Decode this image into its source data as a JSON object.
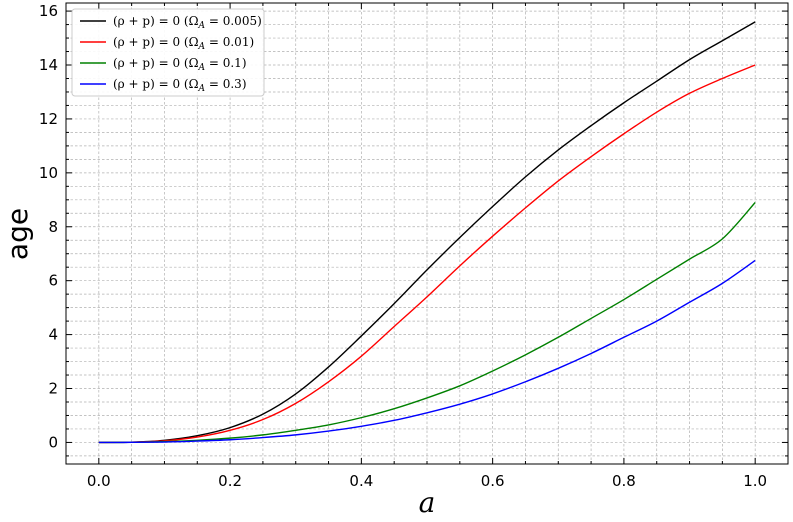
{
  "chart_data": {
    "type": "line",
    "xlabel": "a",
    "ylabel": "age",
    "xlim": [
      -0.05,
      1.05
    ],
    "ylim": [
      -0.8,
      16.3
    ],
    "xticks": [
      0.0,
      0.2,
      0.4,
      0.6,
      0.8,
      1.0
    ],
    "xtick_labels": [
      "0.0",
      "0.2",
      "0.4",
      "0.6",
      "0.8",
      "1.0"
    ],
    "yticks": [
      0,
      2,
      4,
      6,
      8,
      10,
      12,
      14,
      16
    ],
    "ytick_labels": [
      "0",
      "2",
      "4",
      "6",
      "8",
      "10",
      "12",
      "14",
      "16"
    ],
    "grid": true,
    "legend_position": "top-left",
    "x": [
      0.0,
      0.05,
      0.1,
      0.15,
      0.2,
      0.25,
      0.3,
      0.35,
      0.4,
      0.45,
      0.5,
      0.55,
      0.6,
      0.65,
      0.7,
      0.75,
      0.8,
      0.85,
      0.9,
      0.95,
      1.0
    ],
    "series": [
      {
        "name": "(ρ + p) = 0 (Ω_A = 0.005)",
        "color": "#000000",
        "values": [
          0.0,
          0.01,
          0.08,
          0.25,
          0.55,
          1.05,
          1.8,
          2.8,
          3.95,
          5.15,
          6.4,
          7.6,
          8.75,
          9.85,
          10.85,
          11.75,
          12.6,
          13.4,
          14.2,
          14.9,
          15.6
        ]
      },
      {
        "name": "(ρ + p) = 0 (Ω_A = 0.01)",
        "color": "#ff0000",
        "values": [
          0.0,
          0.01,
          0.06,
          0.2,
          0.45,
          0.85,
          1.45,
          2.25,
          3.2,
          4.3,
          5.4,
          6.55,
          7.65,
          8.7,
          9.7,
          10.6,
          11.45,
          12.25,
          12.95,
          13.5,
          14.0
        ]
      },
      {
        "name": "(ρ + p) = 0 (Ω_A = 0.1)",
        "color": "#008000",
        "values": [
          0.0,
          0.005,
          0.03,
          0.08,
          0.16,
          0.28,
          0.45,
          0.65,
          0.92,
          1.25,
          1.65,
          2.1,
          2.65,
          3.25,
          3.9,
          4.6,
          5.3,
          6.05,
          6.8,
          7.55,
          8.9
        ]
      },
      {
        "name": "(ρ + p) = 0 (Ω_A = 0.3)",
        "color": "#0000ff",
        "values": [
          0.0,
          0.003,
          0.015,
          0.05,
          0.1,
          0.18,
          0.28,
          0.42,
          0.6,
          0.82,
          1.1,
          1.42,
          1.8,
          2.25,
          2.75,
          3.3,
          3.9,
          4.5,
          5.2,
          5.9,
          6.75
        ]
      }
    ]
  },
  "legend": {
    "entries": [
      {
        "prefix": "(ρ + p) = 0 (Ω",
        "sub": "A",
        "suffix": " = 0.005)"
      },
      {
        "prefix": "(ρ + p) = 0 (Ω",
        "sub": "A",
        "suffix": " = 0.01)"
      },
      {
        "prefix": "(ρ + p) = 0 (Ω",
        "sub": "A",
        "suffix": " = 0.1)"
      },
      {
        "prefix": "(ρ + p) = 0 (Ω",
        "sub": "A",
        "suffix": " = 0.3)"
      }
    ]
  }
}
